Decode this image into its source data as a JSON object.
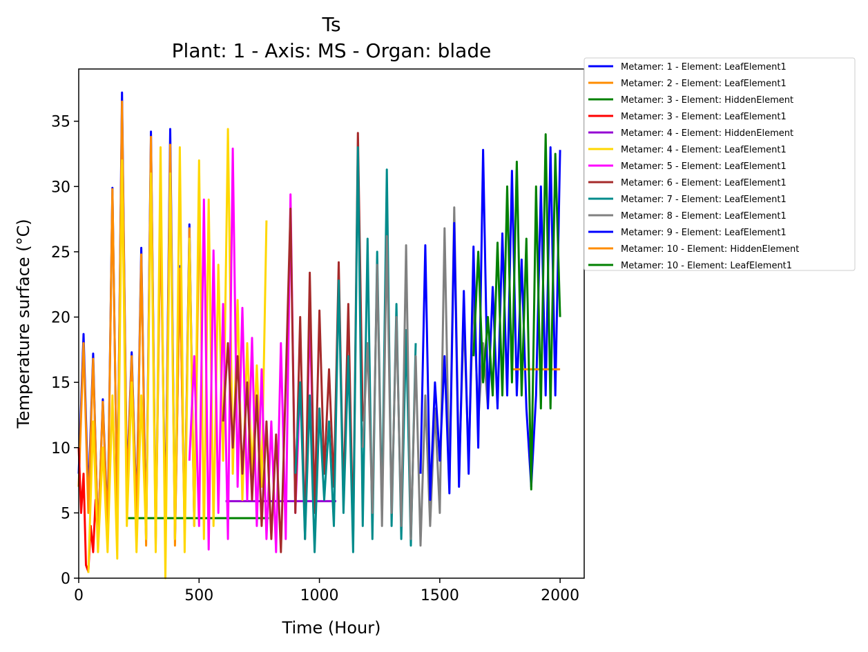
{
  "chart_data": {
    "type": "line",
    "title": "Ts",
    "subtitle": "Plant: 1 - Axis: MS - Organ: blade",
    "xlabel": "Time (Hour)",
    "ylabel": "Temperature surface (°C)",
    "xlim": [
      0,
      2100
    ],
    "ylim": [
      0,
      39
    ],
    "xticks": [
      0,
      500,
      1000,
      1500,
      2000
    ],
    "yticks": [
      0,
      5,
      10,
      15,
      20,
      25,
      30,
      35
    ],
    "grid": false,
    "legend_position": "outside-top-right",
    "series": [
      {
        "name": "Metamer: 1 - Element: LeafElement1",
        "color": "#0000ff",
        "x": [
          0,
          20,
          40,
          60,
          80,
          100,
          120,
          140,
          160,
          180,
          200,
          220,
          240,
          260,
          280,
          300,
          320,
          340,
          360,
          380,
          400,
          420,
          440,
          460,
          480
        ],
        "y": [
          8,
          18.7,
          6,
          17.2,
          3,
          13.7,
          4,
          29.9,
          5,
          37.2,
          7,
          17.3,
          5,
          25.3,
          3,
          34.2,
          3,
          28.5,
          4,
          34.4,
          3,
          23.9,
          4,
          27.1,
          4
        ]
      },
      {
        "name": "Metamer: 2 - Element: LeafElement1",
        "color": "#ff8c00",
        "x": [
          0,
          20,
          40,
          60,
          80,
          100,
          120,
          140,
          160,
          180,
          200,
          220,
          240,
          260,
          280,
          300,
          320,
          340,
          360,
          380,
          400,
          420,
          440,
          460,
          480,
          500
        ],
        "y": [
          7,
          18,
          5,
          16.8,
          3,
          13.5,
          3.5,
          29.8,
          5,
          36.5,
          6.5,
          17,
          4.5,
          24.8,
          2.5,
          33.8,
          2.5,
          27.8,
          3.5,
          33.2,
          2.5,
          23.7,
          3.5,
          26.8,
          4,
          27
        ]
      },
      {
        "name": "Metamer: 3 - Element: HiddenElement",
        "color": "#008000",
        "x": [
          200,
          790
        ],
        "y": [
          4.6,
          4.6
        ]
      },
      {
        "name": "Metamer: 3 - Element: LeafElement1",
        "color": "#ff0000",
        "x": [
          0,
          10,
          20,
          30,
          40,
          50,
          60,
          70,
          80
        ],
        "y": [
          10,
          5,
          8,
          1,
          0.5,
          4,
          2,
          6,
          3
        ]
      },
      {
        "name": "Metamer: 4 - Element: HiddenElement",
        "color": "#9400d3",
        "x": [
          610,
          1070
        ],
        "y": [
          5.9,
          5.9
        ]
      },
      {
        "name": "Metamer: 4 - Element: LeafElement1",
        "color": "#ffd700",
        "x": [
          40,
          60,
          80,
          100,
          120,
          140,
          160,
          180,
          200,
          220,
          240,
          260,
          280,
          300,
          320,
          340,
          360,
          380,
          400,
          420,
          440,
          460,
          480,
          500,
          520,
          540,
          560,
          580,
          600,
          620,
          640,
          660,
          680,
          700,
          720,
          740,
          760,
          780
        ],
        "y": [
          0.4,
          12,
          2,
          10,
          2,
          14,
          1.5,
          32,
          4,
          15,
          2,
          14,
          3,
          31,
          2,
          33,
          0,
          31,
          3,
          33,
          2,
          26,
          4,
          32,
          3,
          29,
          4,
          24,
          9,
          34.4,
          8,
          21.3,
          6,
          18,
          8,
          16.3,
          7,
          27.4
        ]
      },
      {
        "name": "Metamer: 5 - Element: LeafElement1",
        "color": "#ff00ff",
        "x": [
          460,
          480,
          500,
          520,
          540,
          560,
          580,
          600,
          620,
          640,
          660,
          680,
          700,
          720,
          740,
          760,
          780,
          800,
          820,
          840,
          860,
          880,
          900,
          920,
          940,
          960,
          980
        ],
        "y": [
          9,
          17,
          4,
          29,
          2.2,
          25.1,
          5,
          21,
          3,
          32.9,
          7,
          20.7,
          6,
          18.4,
          4,
          16,
          3,
          12,
          2,
          18,
          3,
          29.4,
          5,
          15,
          4,
          20.2,
          6
        ]
      },
      {
        "name": "Metamer: 6 - Element: LeafElement1",
        "color": "#a52a2a",
        "x": [
          600,
          620,
          640,
          660,
          680,
          700,
          720,
          740,
          760,
          780,
          800,
          820,
          840,
          860,
          880,
          900,
          920,
          940,
          960,
          980,
          1000,
          1020,
          1040,
          1060,
          1080,
          1100,
          1120,
          1140,
          1160,
          1180
        ],
        "y": [
          12,
          18,
          10,
          17,
          8,
          15,
          6,
          14,
          4,
          12,
          3,
          11,
          2,
          15,
          28.3,
          5,
          20,
          3,
          23.4,
          5,
          20.5,
          8,
          16,
          7,
          24.2,
          6,
          21,
          3,
          34.1,
          12
        ]
      },
      {
        "name": "Metamer: 7 - Element: LeafElement1",
        "color": "#008b8b",
        "x": [
          900,
          920,
          940,
          960,
          980,
          1000,
          1020,
          1040,
          1060,
          1080,
          1100,
          1120,
          1140,
          1160,
          1180,
          1200,
          1220,
          1240,
          1260,
          1280,
          1300,
          1320,
          1340,
          1360,
          1380,
          1400
        ],
        "y": [
          8,
          15,
          3,
          14,
          2,
          13,
          6,
          12,
          4,
          22.8,
          5,
          17,
          2,
          33,
          4,
          26,
          3,
          25,
          5,
          31.3,
          4,
          21,
          3,
          19,
          2.5,
          18
        ]
      },
      {
        "name": "Metamer: 8 - Element: LeafElement1",
        "color": "#808080",
        "x": [
          1180,
          1200,
          1220,
          1240,
          1260,
          1280,
          1300,
          1320,
          1340,
          1360,
          1380,
          1400,
          1420,
          1440,
          1460,
          1480,
          1500,
          1520,
          1540,
          1560,
          1580,
          1600,
          1620,
          1640,
          1660,
          1680,
          1700
        ],
        "y": [
          10,
          18,
          5,
          24,
          4,
          26.2,
          5,
          20,
          4,
          25.5,
          3,
          17,
          2.5,
          14,
          4,
          13,
          5,
          26.8,
          7,
          28.4,
          8,
          20,
          9,
          22,
          12,
          18,
          13
        ]
      },
      {
        "name": "Metamer: 9 - Element: LeafElement1",
        "color": "#0000ff",
        "x": [
          1420,
          1440,
          1460,
          1480,
          1500,
          1520,
          1540,
          1560,
          1580,
          1600,
          1620,
          1640,
          1660,
          1680,
          1700,
          1720,
          1740,
          1760,
          1780,
          1800,
          1820,
          1840,
          1860,
          1880,
          1900,
          1920,
          1940,
          1960,
          1980,
          2000
        ],
        "y": [
          8,
          25.5,
          6,
          15,
          9,
          17,
          6.5,
          27.2,
          7,
          22,
          8,
          25.4,
          10,
          32.8,
          13,
          22.3,
          13,
          26.4,
          14,
          31.2,
          14,
          24.4,
          13,
          7,
          14,
          30,
          14,
          33,
          14,
          32.8
        ]
      },
      {
        "name": "Metamer: 10 - Element: HiddenElement",
        "color": "#ff8c00",
        "x": [
          1800,
          2000
        ],
        "y": [
          16,
          16
        ]
      },
      {
        "name": "Metamer: 10 - Element: LeafElement1",
        "color": "#008000",
        "x": [
          1640,
          1660,
          1680,
          1700,
          1720,
          1740,
          1760,
          1780,
          1800,
          1820,
          1840,
          1860,
          1880,
          1900,
          1920,
          1940,
          1960,
          1980,
          2000
        ],
        "y": [
          17,
          25,
          15,
          20,
          14,
          25.7,
          14,
          30,
          15,
          31.9,
          14,
          26,
          6.8,
          30,
          13,
          34,
          13,
          32.5,
          20
        ]
      }
    ]
  }
}
